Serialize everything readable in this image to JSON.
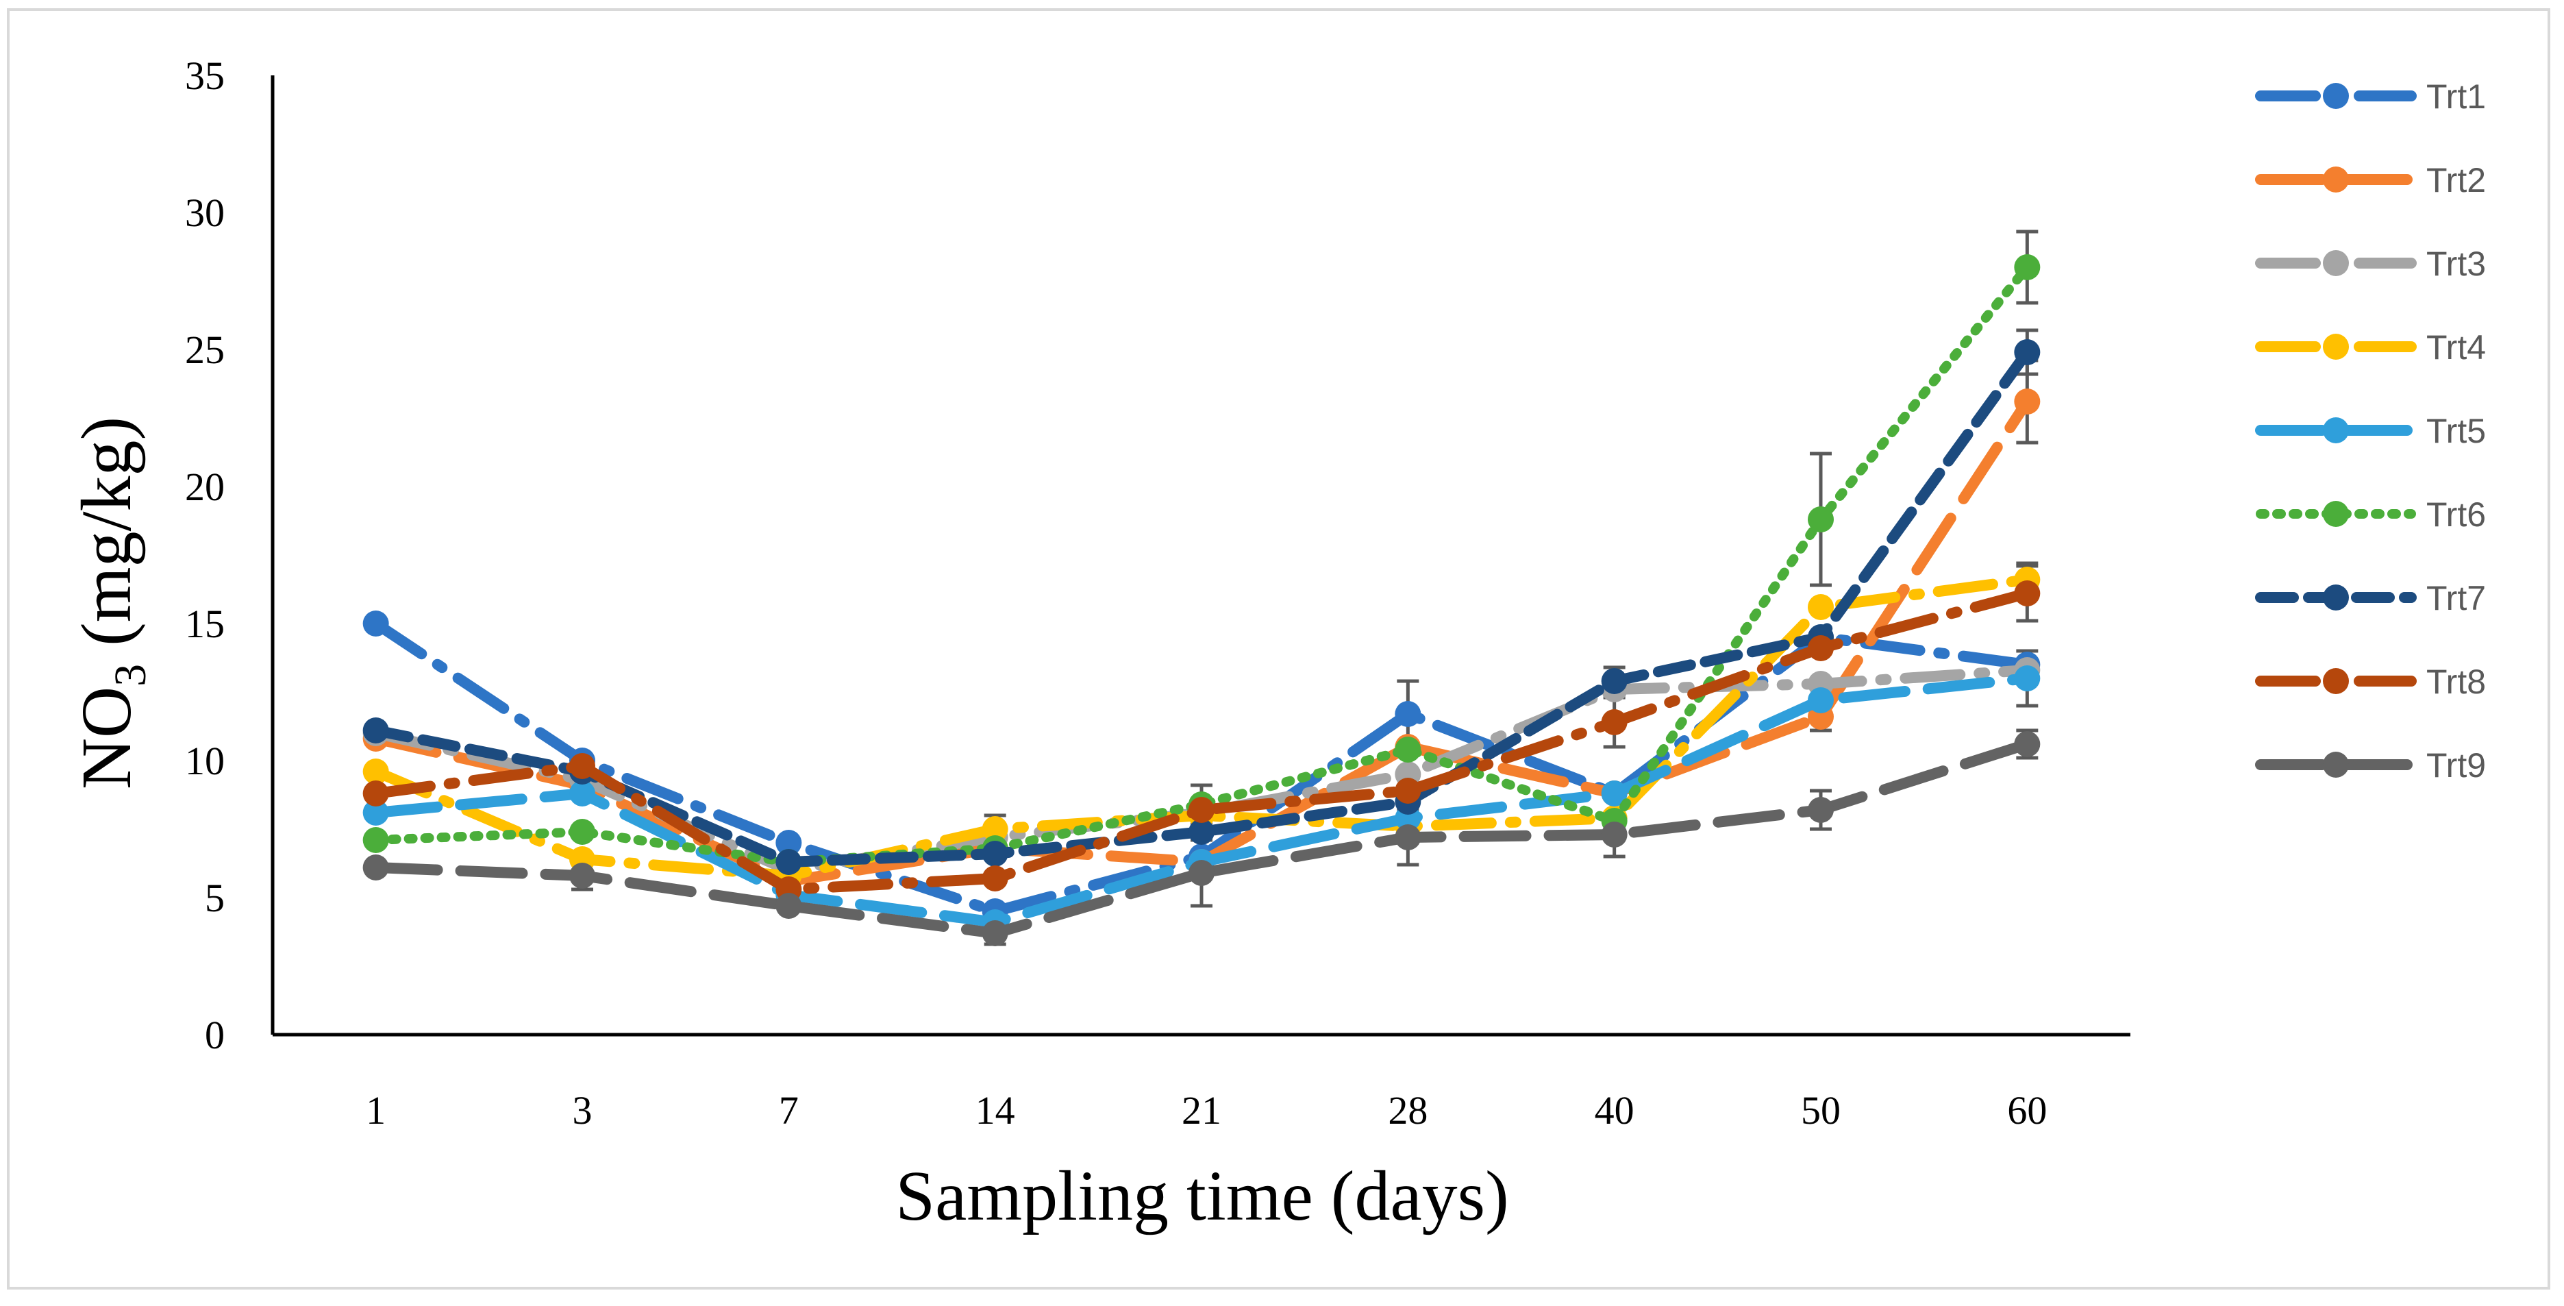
{
  "chart_data": {
    "type": "line",
    "categories": [
      "1",
      "3",
      "7",
      "14",
      "21",
      "28",
      "40",
      "50",
      "60"
    ],
    "ylabel_main": "NO",
    "ylabel_sub": "3",
    "ylabel_unit": " (mg/kg)",
    "xlabel": "Sampling time (days)",
    "ylim": [
      0,
      35
    ],
    "yticks": [
      "0",
      "5",
      "10",
      "15",
      "20",
      "25",
      "30",
      "35"
    ],
    "legend_position": "right",
    "series": [
      {
        "name": "Trt1",
        "color": "#2E75C6",
        "dash": "longdashdot",
        "values": [
          15.0,
          10.0,
          7.0,
          4.5,
          6.5,
          11.7,
          8.8,
          14.5,
          13.5
        ],
        "errors": [
          0,
          0,
          0,
          0,
          0,
          1.2,
          0,
          0,
          0
        ]
      },
      {
        "name": "Trt2",
        "color": "#F47F2E",
        "dash": "longdash",
        "values": [
          10.8,
          9.1,
          5.6,
          6.8,
          6.3,
          10.5,
          8.8,
          11.6,
          23.1
        ],
        "errors": [
          0,
          0,
          0,
          0,
          0,
          0,
          0,
          0.5,
          1.5
        ]
      },
      {
        "name": "Trt3",
        "color": "#A5A5A5",
        "dash": "longdashdot",
        "values": [
          11.0,
          9.3,
          6.0,
          7.2,
          8.1,
          9.5,
          12.6,
          12.8,
          13.3
        ],
        "errors": [
          0,
          0,
          0,
          0,
          0,
          0,
          0,
          0,
          0
        ]
      },
      {
        "name": "Trt4",
        "color": "#FFC000",
        "dash": "longdashdot",
        "values": [
          9.6,
          6.4,
          5.8,
          7.5,
          8.0,
          7.6,
          7.9,
          15.6,
          16.6
        ],
        "errors": [
          0,
          0,
          0,
          0.5,
          0,
          0,
          0,
          0,
          0.6
        ]
      },
      {
        "name": "Trt5",
        "color": "#2F9FDB",
        "dash": "longdash",
        "values": [
          8.1,
          8.8,
          5.1,
          4.1,
          6.3,
          7.9,
          8.8,
          12.2,
          13.0
        ],
        "errors": [
          0,
          0,
          0,
          0,
          0,
          0,
          0,
          0,
          1.0
        ]
      },
      {
        "name": "Trt6",
        "color": "#4BAE3A",
        "dash": "dot",
        "values": [
          7.1,
          7.4,
          6.3,
          6.8,
          8.4,
          10.4,
          7.8,
          18.8,
          28.0
        ],
        "errors": [
          0,
          0,
          0,
          0,
          0.7,
          0,
          0,
          2.4,
          1.3
        ]
      },
      {
        "name": "Trt7",
        "color": "#1C4B7F",
        "dash": "dash",
        "values": [
          11.1,
          9.6,
          6.3,
          6.6,
          7.4,
          8.5,
          12.9,
          14.5,
          24.9
        ],
        "errors": [
          0,
          0,
          0,
          0,
          0,
          0,
          0.5,
          0,
          0.8
        ]
      },
      {
        "name": "Trt8",
        "color": "#B5470C",
        "dash": "longdashdot",
        "values": [
          8.8,
          9.8,
          5.3,
          5.7,
          8.2,
          8.9,
          11.4,
          14.1,
          16.1
        ],
        "errors": [
          0,
          0,
          0,
          0,
          0,
          0,
          0.9,
          0,
          1.0
        ]
      },
      {
        "name": "Trt9",
        "color": "#636363",
        "dash": "longdash",
        "values": [
          6.1,
          5.8,
          4.7,
          3.7,
          5.9,
          7.2,
          7.3,
          8.2,
          10.6
        ],
        "errors": [
          0,
          0.5,
          0,
          0.4,
          1.2,
          1.0,
          0.8,
          0.7,
          0.5
        ]
      }
    ]
  }
}
